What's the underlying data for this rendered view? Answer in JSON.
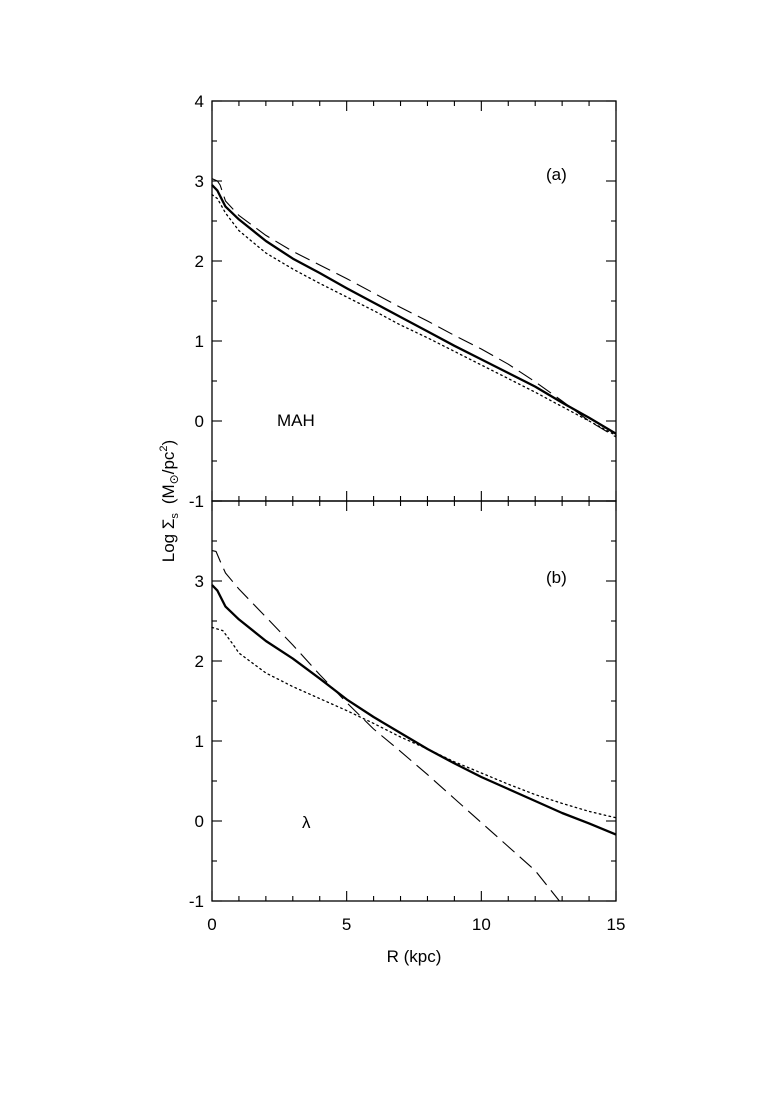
{
  "chart_data": [
    {
      "type": "line",
      "panel": "a",
      "panel_label": "(a)",
      "annotation": "MAH",
      "xlabel": "",
      "ylabel": "",
      "xlim": [
        0,
        15
      ],
      "ylim": [
        -1,
        4
      ],
      "xticks": [
        0,
        5,
        10,
        15
      ],
      "yticks": [
        -1,
        0,
        1,
        2,
        3,
        4
      ],
      "ytick_labels": [
        "-1",
        "0",
        "1",
        "2",
        "3",
        "4"
      ],
      "series": [
        {
          "style": "solid",
          "x": [
            0,
            0.2,
            0.5,
            1,
            2,
            3,
            4,
            5,
            6,
            7,
            8,
            9,
            10,
            11,
            12,
            13,
            14,
            15
          ],
          "y": [
            2.95,
            2.88,
            2.68,
            2.52,
            2.25,
            2.03,
            1.85,
            1.66,
            1.48,
            1.3,
            1.12,
            0.94,
            0.77,
            0.6,
            0.43,
            0.23,
            0.04,
            -0.16
          ]
        },
        {
          "style": "dashed",
          "x": [
            0,
            0.2,
            0.3,
            0.5,
            1,
            2,
            3,
            4,
            5,
            6,
            7,
            8,
            9,
            10,
            11,
            12,
            13,
            14,
            15
          ],
          "y": [
            3.03,
            3.0,
            2.95,
            2.75,
            2.57,
            2.32,
            2.12,
            1.95,
            1.78,
            1.6,
            1.42,
            1.25,
            1.07,
            0.9,
            0.71,
            0.49,
            0.25,
            0.0,
            -0.2
          ]
        },
        {
          "style": "dotted",
          "x": [
            0,
            0.2,
            0.5,
            1,
            2,
            3,
            4,
            5,
            6,
            7,
            8,
            9,
            10,
            11,
            12,
            13,
            14,
            15
          ],
          "y": [
            2.83,
            2.78,
            2.6,
            2.38,
            2.1,
            1.9,
            1.72,
            1.55,
            1.38,
            1.2,
            1.04,
            0.87,
            0.7,
            0.53,
            0.36,
            0.18,
            0.0,
            -0.18
          ]
        }
      ]
    },
    {
      "type": "line",
      "panel": "b",
      "panel_label": "(b)",
      "annotation": "λ",
      "xlabel": "R (kpc)",
      "ylabel": "",
      "xlim": [
        0,
        15
      ],
      "ylim": [
        -1,
        4
      ],
      "xticks": [
        0,
        5,
        10,
        15
      ],
      "xtick_labels": [
        "0",
        "5",
        "10",
        "15"
      ],
      "yticks": [
        -1,
        0,
        1,
        2,
        3,
        4
      ],
      "ytick_labels": [
        "-1",
        "0",
        "1",
        "2",
        "3",
        ""
      ],
      "series": [
        {
          "style": "solid",
          "x": [
            0,
            0.2,
            0.5,
            1,
            2,
            3,
            4,
            5,
            6,
            7,
            8,
            9,
            10,
            11,
            12,
            13,
            14,
            15
          ],
          "y": [
            2.95,
            2.88,
            2.68,
            2.52,
            2.25,
            2.03,
            1.78,
            1.52,
            1.3,
            1.1,
            0.9,
            0.72,
            0.55,
            0.4,
            0.25,
            0.1,
            -0.03,
            -0.17
          ]
        },
        {
          "style": "dashed",
          "x": [
            0,
            0.15,
            0.3,
            0.5,
            1,
            2,
            3,
            4,
            5,
            6,
            7,
            8,
            9,
            10,
            11,
            12,
            12.9
          ],
          "y": [
            3.38,
            3.37,
            3.25,
            3.1,
            2.9,
            2.55,
            2.2,
            1.83,
            1.48,
            1.15,
            0.87,
            0.58,
            0.28,
            -0.02,
            -0.32,
            -0.62,
            -1.0
          ]
        },
        {
          "style": "dotted",
          "x": [
            0,
            0.4,
            0.8,
            1,
            2,
            3,
            4,
            5,
            6,
            7,
            8,
            9,
            10,
            11,
            12,
            13,
            14,
            15
          ],
          "y": [
            2.42,
            2.38,
            2.2,
            2.1,
            1.85,
            1.68,
            1.53,
            1.38,
            1.22,
            1.05,
            0.9,
            0.74,
            0.6,
            0.46,
            0.33,
            0.22,
            0.12,
            0.04
          ]
        }
      ]
    }
  ],
  "ylabel_shared": {
    "prefix": "Log Σ",
    "subscript": "s",
    "units_open": "(M",
    "units_sun": "⊙",
    "units_mid": "/pc",
    "units_sup": "2",
    "units_close": ")"
  }
}
